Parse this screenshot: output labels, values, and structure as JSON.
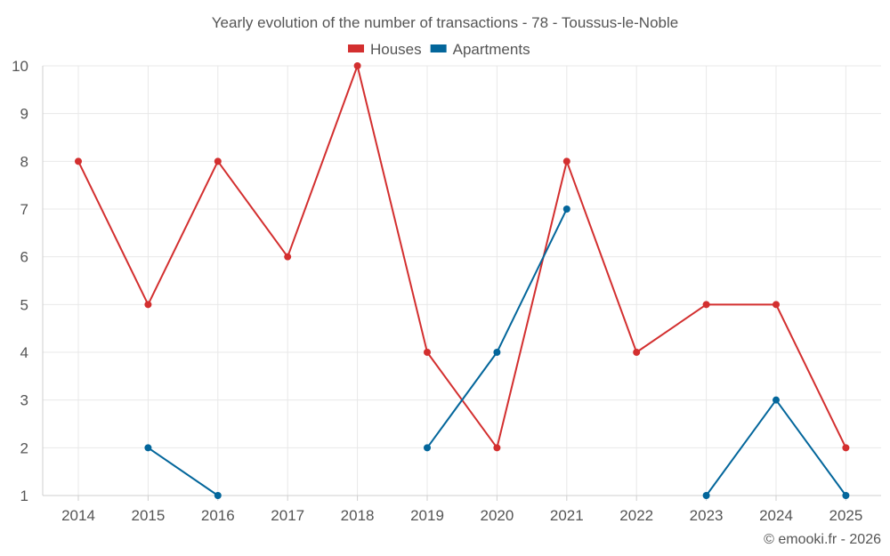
{
  "chart_data": {
    "type": "line",
    "title": "Yearly evolution of the number of transactions - 78 - Toussus-le-Noble",
    "xlabel": "",
    "ylabel": "",
    "categories": [
      "2014",
      "2015",
      "2016",
      "2017",
      "2018",
      "2019",
      "2020",
      "2021",
      "2022",
      "2023",
      "2024",
      "2025"
    ],
    "ylim": [
      1,
      10
    ],
    "yticks": [
      1,
      2,
      3,
      4,
      5,
      6,
      7,
      8,
      9,
      10
    ],
    "grid": true,
    "legend_position": "top-center",
    "series": [
      {
        "name": "Houses",
        "color": "#d32f2f",
        "values": [
          8,
          5,
          8,
          6,
          10,
          4,
          2,
          8,
          4,
          5,
          5,
          2
        ]
      },
      {
        "name": "Apartments",
        "color": "#03669b",
        "values": [
          null,
          2,
          1,
          null,
          null,
          2,
          4,
          7,
          null,
          1,
          3,
          1
        ]
      }
    ],
    "credit": "© emooki.fr - 2026"
  }
}
